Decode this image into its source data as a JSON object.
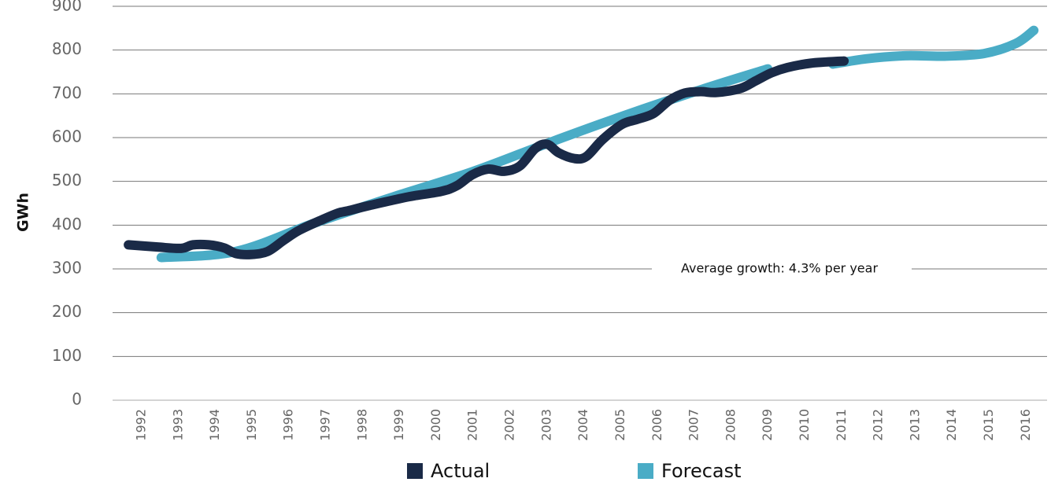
{
  "chart_data": {
    "type": "line",
    "y_label": "GWh",
    "annotation": "Average growth: 4.3% per year",
    "xlim": [
      1991.21,
      2016.57
    ],
    "xticks": [
      1992,
      1993,
      1994,
      1995,
      1996,
      1997,
      1998,
      1999,
      2000,
      2001,
      2002,
      2003,
      2004,
      2005,
      2006,
      2007,
      2008,
      2009,
      2010,
      2011,
      2012,
      2013,
      2014,
      2015,
      2016
    ],
    "ylim": [
      0,
      900
    ],
    "yticks": [
      0,
      100,
      200,
      300,
      400,
      500,
      600,
      700,
      800,
      900
    ],
    "grid": true,
    "legend": "bottom",
    "series": [
      {
        "name": "Forecast",
        "color": "#4aacc6",
        "x": [
          1992.53,
          1994.56,
          1996.7,
          1998.84,
          2000.97,
          2003.11,
          2005.25,
          2007.38,
          2008.99,
          2009.9,
          2010.76,
          2011.66,
          2012.73,
          2013.79,
          2014.86,
          2015.72,
          2016.21
        ],
        "values": [
          326,
          340,
          405,
          465,
          522,
          590,
          655,
          715,
          757,
          null,
          768,
          780,
          787,
          786,
          792,
          815,
          845
        ]
      },
      {
        "name": "Actual",
        "color": "#1a2a47",
        "x": [
          1991.64,
          1992.43,
          1993.07,
          1993.39,
          1993.82,
          1994.24,
          1994.56,
          1994.99,
          1995.42,
          1995.85,
          1996.27,
          1996.91,
          1997.34,
          1997.56,
          1998.19,
          1999.26,
          2000.12,
          2000.55,
          2000.97,
          2001.4,
          2001.83,
          2002.26,
          2002.68,
          2003.0,
          2003.32,
          2003.75,
          2004.07,
          2004.5,
          2005.03,
          2005.46,
          2005.89,
          2006.32,
          2006.74,
          2007.17,
          2007.6,
          2008.24,
          2008.67,
          2009.09,
          2009.52,
          2010.16,
          2011.06
        ],
        "values": [
          355,
          350,
          347,
          355,
          355,
          348,
          335,
          333,
          340,
          365,
          388,
          413,
          428,
          432,
          445,
          465,
          477,
          490,
          515,
          528,
          523,
          535,
          575,
          585,
          565,
          552,
          557,
          595,
          630,
          642,
          655,
          685,
          702,
          705,
          703,
          712,
          730,
          748,
          760,
          770,
          775
        ]
      }
    ]
  }
}
